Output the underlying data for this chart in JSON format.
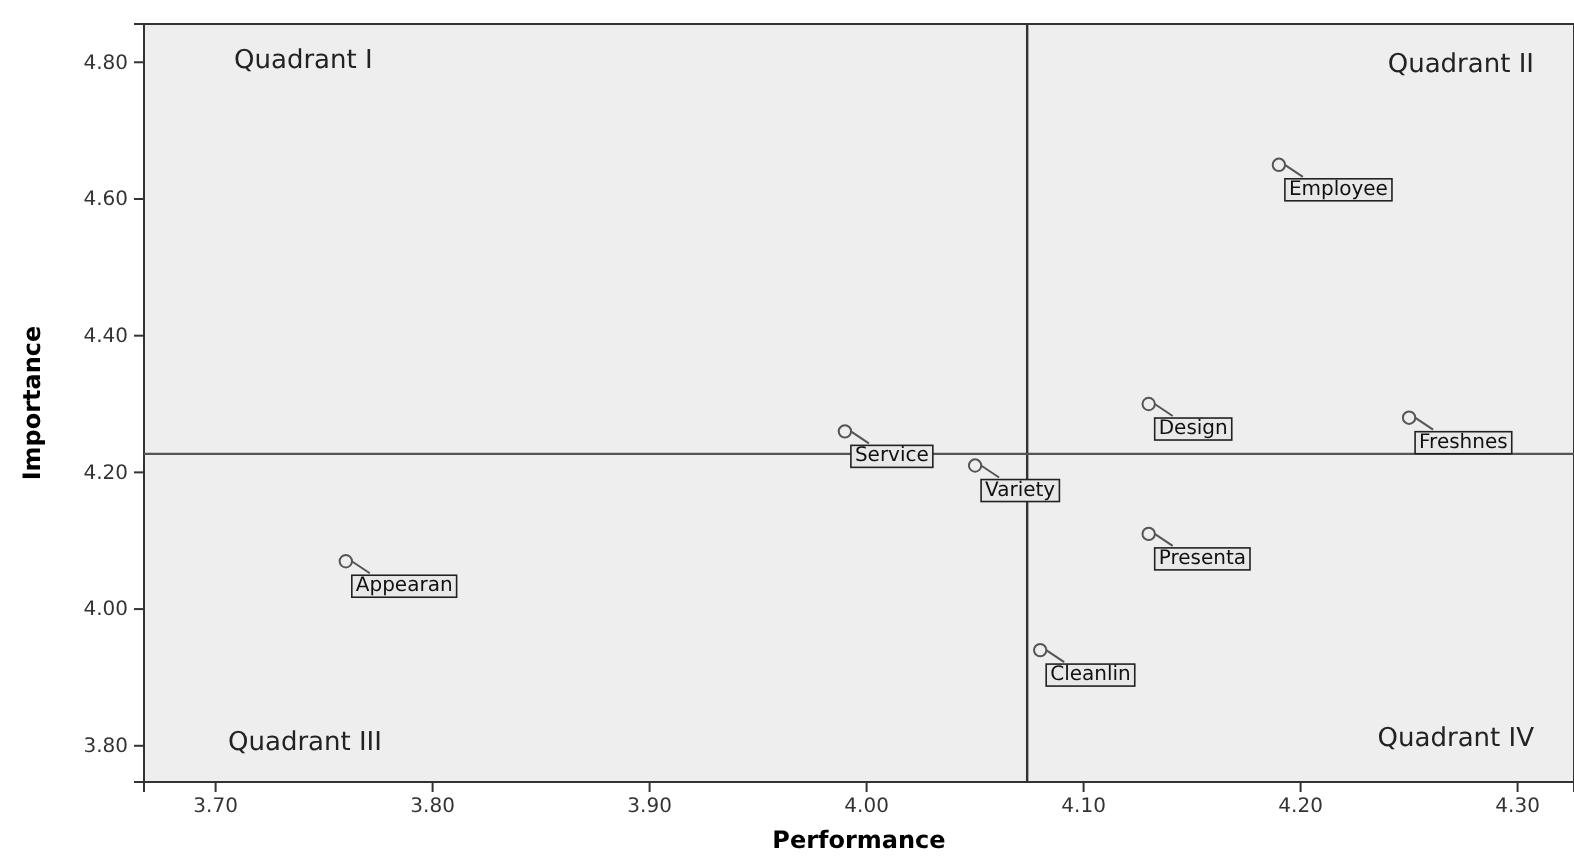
{
  "chart_data": {
    "type": "scatter",
    "xlabel": "Performance",
    "ylabel": "Importance",
    "x": [
      4.19,
      4.13,
      4.25,
      3.99,
      4.05,
      4.13,
      3.76,
      4.08
    ],
    "series": [
      {
        "color": "#555555",
        "values": [
          4.65,
          4.3,
          4.28,
          4.26,
          4.21,
          4.11,
          4.07,
          3.94
        ]
      }
    ],
    "marker": "circle",
    "grid": false,
    "xlim": [
      3.667,
      4.326
    ],
    "ylim": [
      3.747,
      4.856
    ],
    "xticks": [
      {
        "value": 3.7,
        "label": "3.70"
      },
      {
        "value": 3.8,
        "label": "3.80"
      },
      {
        "value": 3.9,
        "label": "3.90"
      },
      {
        "value": 4.0,
        "label": "4.00"
      },
      {
        "value": 4.1,
        "label": "4.10"
      },
      {
        "value": 4.2,
        "label": "4.20"
      },
      {
        "value": 4.3,
        "label": "4.30"
      }
    ],
    "yticks": [
      {
        "value": 3.8,
        "label": "3.80"
      },
      {
        "value": 4.0,
        "label": "4.00"
      },
      {
        "value": 4.2,
        "label": "4.20"
      },
      {
        "value": 4.4,
        "label": "4.40"
      },
      {
        "value": 4.6,
        "label": "4.60"
      },
      {
        "value": 4.8,
        "label": "4.80"
      }
    ],
    "ref_lines": [
      {
        "axis": "x",
        "value": 4.074,
        "color": "#333333"
      },
      {
        "axis": "y",
        "value": 4.227,
        "color": "#555555"
      }
    ],
    "annotations": [
      "Quadrant I",
      "Quadrant II",
      "Quadrant III",
      "Quadrant IV",
      {
        "text": "Employee",
        "x": 4.19,
        "y": 4.65
      },
      {
        "text": "Design",
        "x": 4.13,
        "y": 4.3
      },
      {
        "text": "Freshnes",
        "x": 4.25,
        "y": 4.28
      },
      {
        "text": "Service",
        "x": 3.99,
        "y": 4.26
      },
      {
        "text": "Variety",
        "x": 4.05,
        "y": 4.21
      },
      {
        "text": "Presenta",
        "x": 4.13,
        "y": 4.11
      },
      {
        "text": "Appearan",
        "x": 3.76,
        "y": 4.07
      },
      {
        "text": "Cleanlin",
        "x": 4.08,
        "y": 3.94
      }
    ]
  }
}
